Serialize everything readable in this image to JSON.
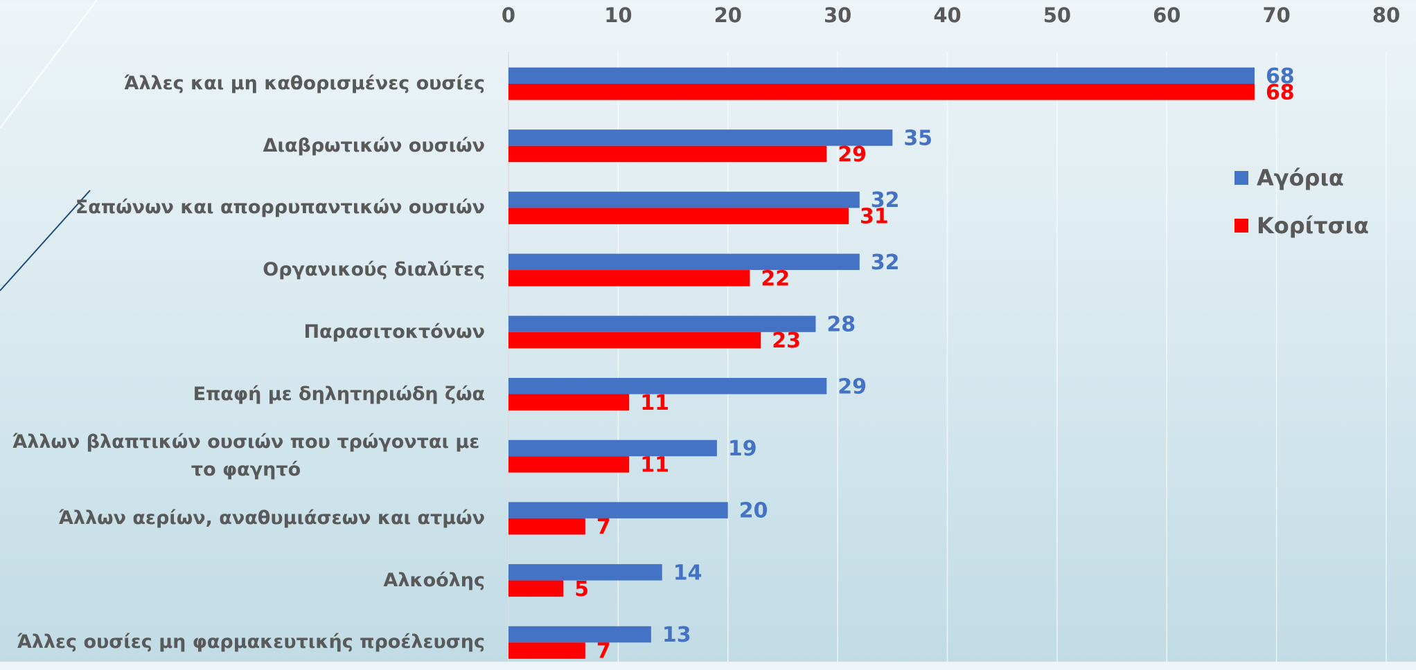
{
  "chart_data": {
    "type": "bar",
    "orientation": "horizontal",
    "categories": [
      "Άλλες και μη καθορισμένες ουσίες",
      "Διαβρωτικών ουσιών",
      "Σαπώνων και απορρυπαντικών ουσιών",
      "Οργανικούς διαλύτες",
      "Παρασιτοκτόνων",
      "Επαφή με δηλητηριώδη ζώα",
      "Άλλων βλαπτικών ουσιών που τρώγονται με το φαγητό",
      "Άλλων αερίων, αναθυμιάσεων και ατμών",
      "Αλκοόλης",
      "Άλλες ουσίες μη φαρμακευτικής προέλευσης"
    ],
    "series": [
      {
        "name": "Αγόρια",
        "color": "#4472c4",
        "values": [
          68,
          35,
          32,
          32,
          28,
          29,
          19,
          20,
          14,
          13
        ]
      },
      {
        "name": "Κορίτσια",
        "color": "#ff0000",
        "values": [
          68,
          29,
          31,
          22,
          23,
          11,
          11,
          7,
          5,
          7
        ]
      }
    ],
    "xlim": [
      0,
      80
    ],
    "xticks": [
      0,
      10,
      20,
      30,
      40,
      50,
      60,
      70,
      80
    ],
    "grid": true,
    "legend": "right"
  }
}
